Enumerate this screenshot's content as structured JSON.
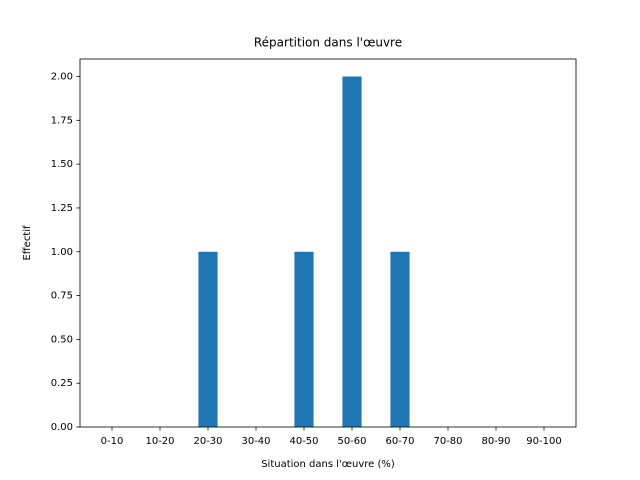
{
  "chart_data": {
    "type": "bar",
    "title": "Répartition dans l'œuvre",
    "x_label": "Situation dans l'œuvre (%)",
    "y_label": "Effectif",
    "categories": [
      "0-10",
      "10-20",
      "20-30",
      "30-40",
      "40-50",
      "50-60",
      "60-70",
      "70-80",
      "80-90",
      "90-100"
    ],
    "values": [
      0,
      0,
      1,
      0,
      1,
      2,
      1,
      0,
      0,
      0
    ],
    "color": "#1f77b4",
    "ylim": [
      0,
      2.1
    ],
    "yticks": [
      {
        "value": 0,
        "label": "0.00"
      },
      {
        "value": 0.25,
        "label": "0.25"
      },
      {
        "value": 0.5,
        "label": "0.50"
      },
      {
        "value": 0.75,
        "label": "0.75"
      },
      {
        "value": 1,
        "label": "1.00"
      },
      {
        "value": 1.25,
        "label": "1.25"
      },
      {
        "value": 1.5,
        "label": "1.50"
      },
      {
        "value": 1.75,
        "label": "1.75"
      },
      {
        "value": 2,
        "label": "2.00"
      }
    ],
    "grid": false
  }
}
